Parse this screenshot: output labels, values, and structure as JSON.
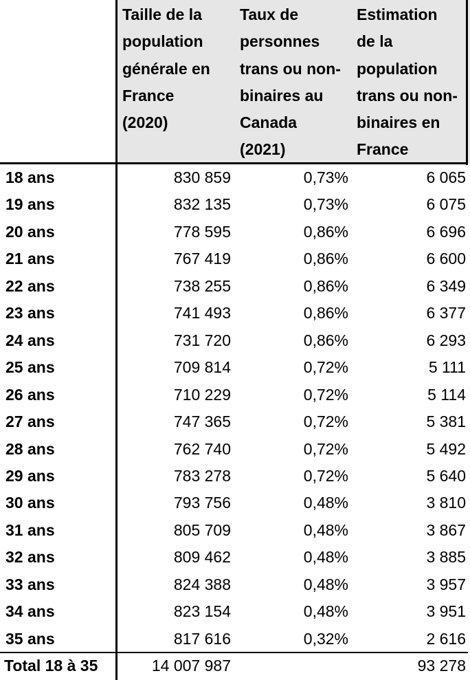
{
  "headers": {
    "population": "Taille de la\npopulation\ngénérale en\nFrance\n(2020)",
    "rate": "Taux de\npersonnes\ntrans ou non-\nbinaires au\nCanada\n(2021)",
    "estimate": "Estimation\nde la\npopulation\ntrans ou non-\nbinaires en\nFrance"
  },
  "rows": [
    {
      "age": "18 ans",
      "population": "830 859",
      "rate": "0,73%",
      "estimate": "6 065"
    },
    {
      "age": "19 ans",
      "population": "832 135",
      "rate": "0,73%",
      "estimate": "6 075"
    },
    {
      "age": "20 ans",
      "population": "778 595",
      "rate": "0,86%",
      "estimate": "6 696"
    },
    {
      "age": "21 ans",
      "population": "767 419",
      "rate": "0,86%",
      "estimate": "6 600"
    },
    {
      "age": "22 ans",
      "population": "738 255",
      "rate": "0,86%",
      "estimate": "6 349"
    },
    {
      "age": "23 ans",
      "population": "741 493",
      "rate": "0,86%",
      "estimate": "6 377"
    },
    {
      "age": "24 ans",
      "population": "731 720",
      "rate": "0,86%",
      "estimate": "6 293"
    },
    {
      "age": "25 ans",
      "population": "709 814",
      "rate": "0,72%",
      "estimate": "5 111"
    },
    {
      "age": "26 ans",
      "population": "710 229",
      "rate": "0,72%",
      "estimate": "5 114"
    },
    {
      "age": "27 ans",
      "population": "747 365",
      "rate": "0,72%",
      "estimate": "5 381"
    },
    {
      "age": "28 ans",
      "population": "762 740",
      "rate": "0,72%",
      "estimate": "5 492"
    },
    {
      "age": "29 ans",
      "population": "783 278",
      "rate": "0,72%",
      "estimate": "5 640"
    },
    {
      "age": "30 ans",
      "population": "793 756",
      "rate": "0,48%",
      "estimate": "3 810"
    },
    {
      "age": "31 ans",
      "population": "805 709",
      "rate": "0,48%",
      "estimate": "3 867"
    },
    {
      "age": "32 ans",
      "population": "809 462",
      "rate": "0,48%",
      "estimate": "3 885"
    },
    {
      "age": "33 ans",
      "population": "824 388",
      "rate": "0,48%",
      "estimate": "3 957"
    },
    {
      "age": "34 ans",
      "population": "823 154",
      "rate": "0,48%",
      "estimate": "3 951"
    },
    {
      "age": "35 ans",
      "population": "817 616",
      "rate": "0,32%",
      "estimate": "2 616"
    }
  ],
  "total": {
    "label": "Total 18 à 35",
    "population": "14 007 987",
    "estimate": "93 278"
  }
}
